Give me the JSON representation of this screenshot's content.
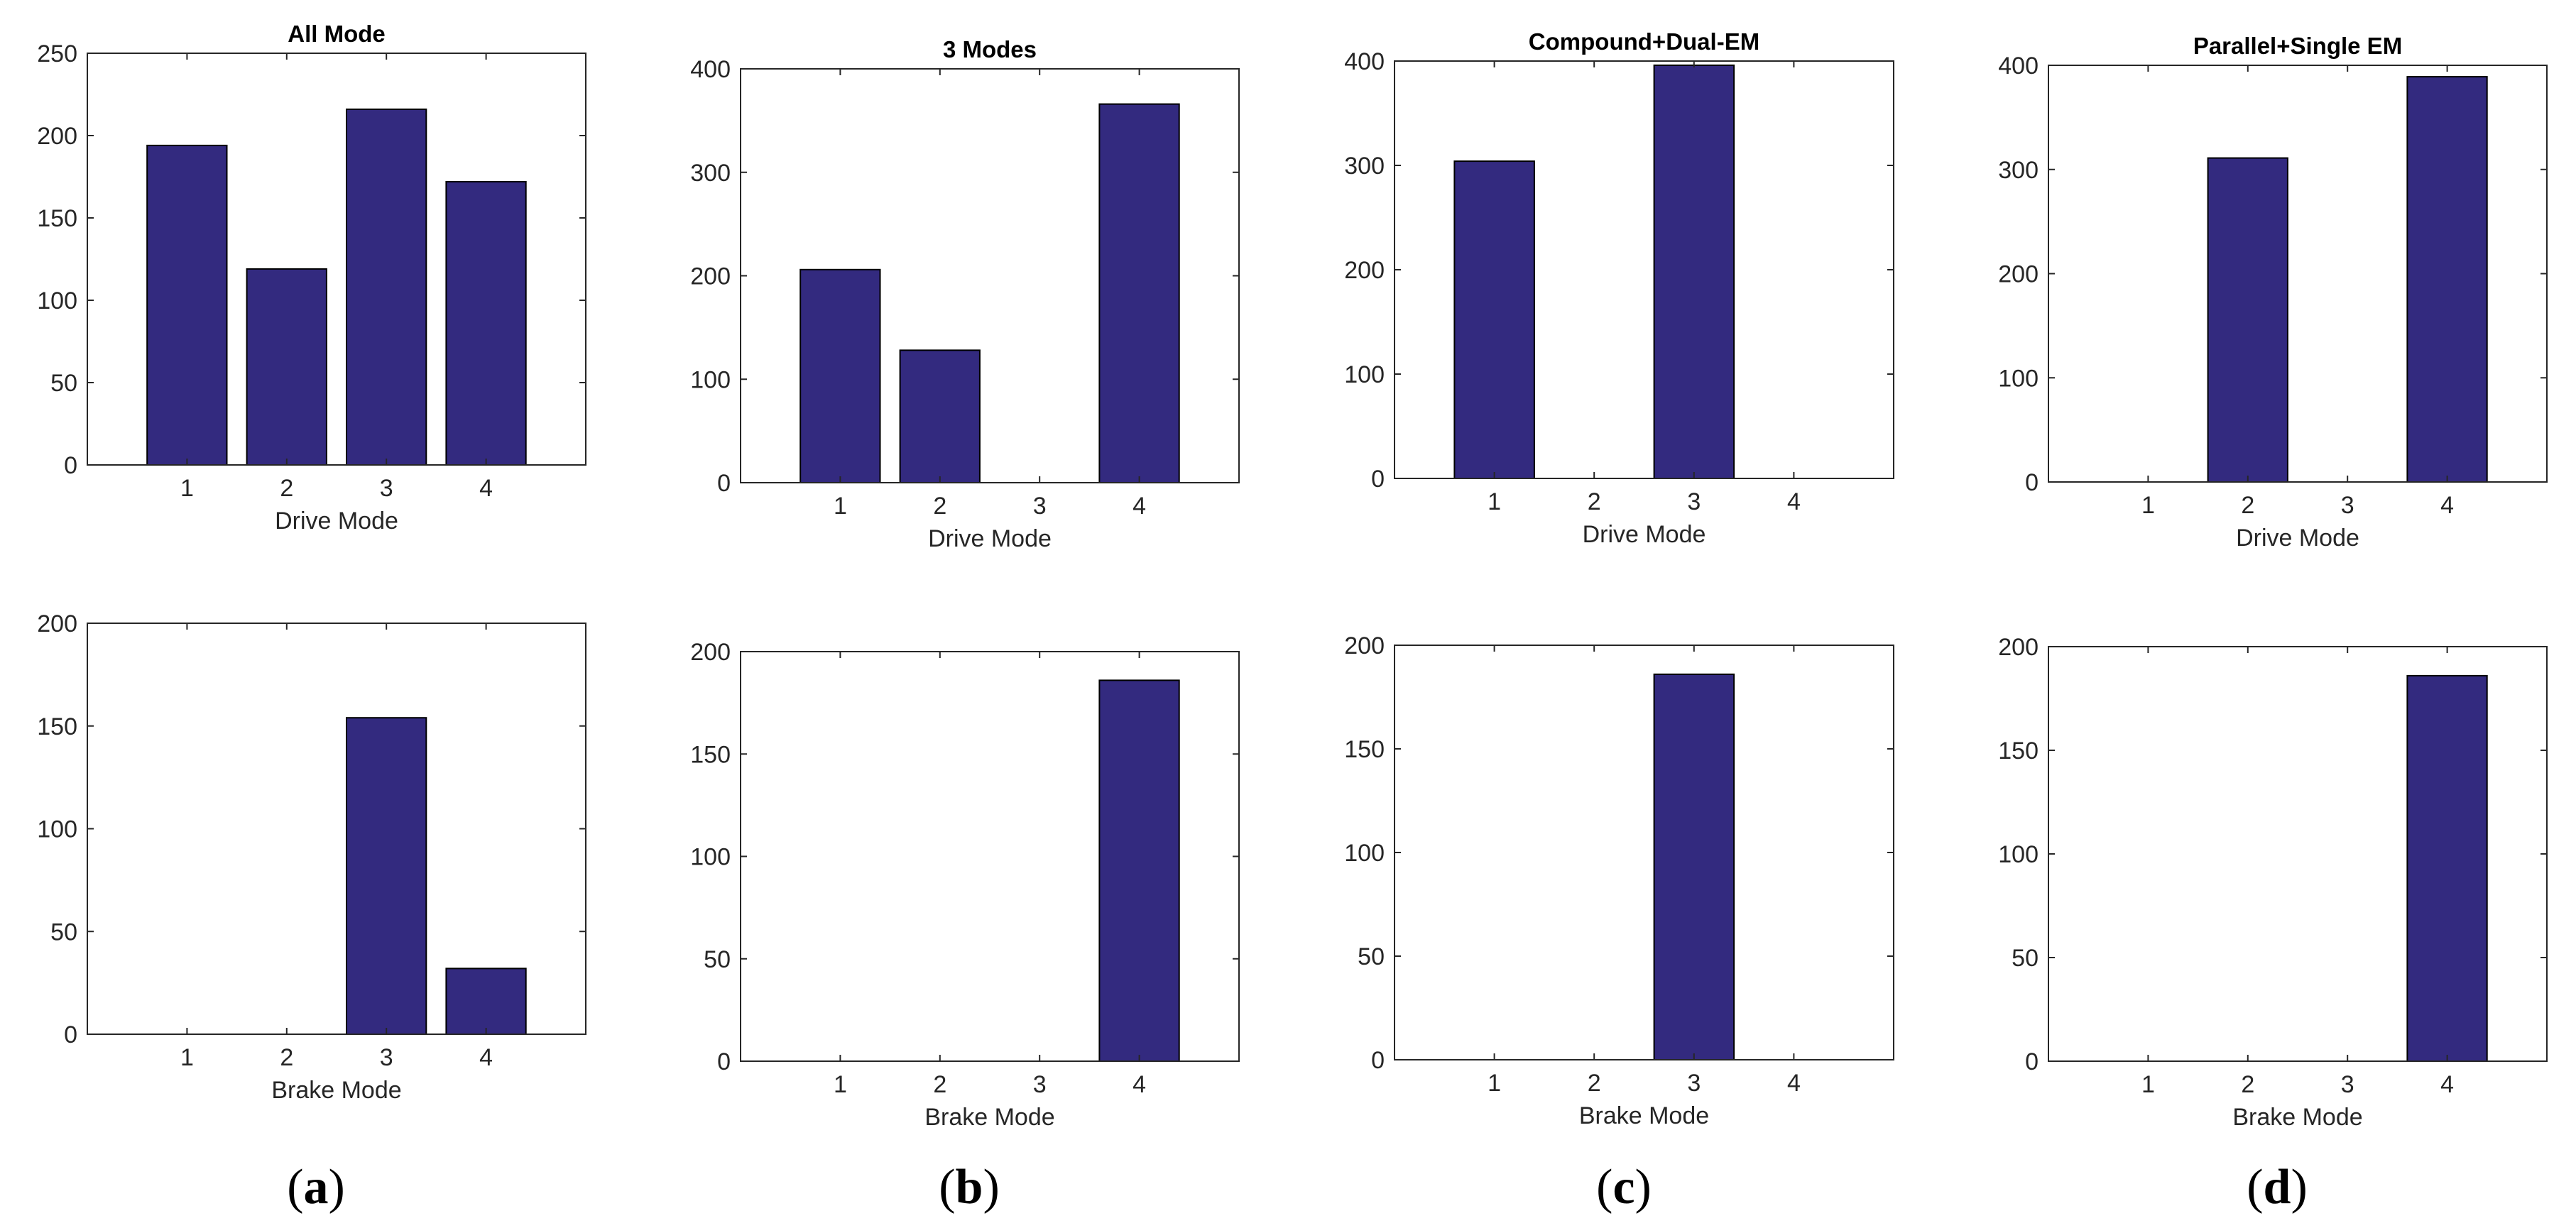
{
  "colors": {
    "bar": "#332a7f",
    "bar_edge": "#000000",
    "axis": "#262626",
    "background": "#ffffff"
  },
  "panel_labels": [
    {
      "open": "(",
      "letter": "a",
      "close": ")"
    },
    {
      "open": "(",
      "letter": "b",
      "close": ")"
    },
    {
      "open": "(",
      "letter": "c",
      "close": ")"
    },
    {
      "open": "(",
      "letter": "d",
      "close": ")"
    }
  ],
  "chart_data": [
    {
      "type": "bar",
      "title": "All Mode",
      "xlabel": "Drive Mode",
      "ylabel": "",
      "categories": [
        "1",
        "2",
        "3",
        "4"
      ],
      "values": [
        194,
        119,
        216,
        172
      ],
      "ylim": [
        0,
        250
      ],
      "yticks": [
        0,
        50,
        100,
        150,
        200,
        250
      ],
      "grid": false
    },
    {
      "type": "bar",
      "title": "",
      "xlabel": "Brake Mode",
      "ylabel": "",
      "categories": [
        "1",
        "2",
        "3",
        "4"
      ],
      "values": [
        0,
        0,
        154,
        32
      ],
      "ylim": [
        0,
        200
      ],
      "yticks": [
        0,
        50,
        100,
        150,
        200
      ],
      "grid": false
    },
    {
      "type": "bar",
      "title": "3 Modes",
      "xlabel": "Drive Mode",
      "ylabel": "",
      "categories": [
        "1",
        "2",
        "3",
        "4"
      ],
      "values": [
        206,
        128,
        0,
        366
      ],
      "ylim": [
        0,
        400
      ],
      "yticks": [
        0,
        100,
        200,
        300,
        400
      ],
      "grid": false
    },
    {
      "type": "bar",
      "title": "",
      "xlabel": "Brake Mode",
      "ylabel": "",
      "categories": [
        "1",
        "2",
        "3",
        "4"
      ],
      "values": [
        0,
        0,
        0,
        186
      ],
      "ylim": [
        0,
        200
      ],
      "yticks": [
        0,
        50,
        100,
        150,
        200
      ],
      "grid": false
    },
    {
      "type": "bar",
      "title": "Compound+Dual-EM",
      "xlabel": "Drive Mode",
      "ylabel": "",
      "categories": [
        "1",
        "2",
        "3",
        "4"
      ],
      "values": [
        304,
        0,
        396,
        0
      ],
      "ylim": [
        0,
        400
      ],
      "yticks": [
        0,
        100,
        200,
        300,
        400
      ],
      "grid": false
    },
    {
      "type": "bar",
      "title": "",
      "xlabel": "Brake Mode",
      "ylabel": "",
      "categories": [
        "1",
        "2",
        "3",
        "4"
      ],
      "values": [
        0,
        0,
        186,
        0
      ],
      "ylim": [
        0,
        200
      ],
      "yticks": [
        0,
        50,
        100,
        150,
        200
      ],
      "grid": false
    },
    {
      "type": "bar",
      "title": "Parallel+Single EM",
      "xlabel": "Drive Mode",
      "ylabel": "",
      "categories": [
        "1",
        "2",
        "3",
        "4"
      ],
      "values": [
        0,
        311,
        0,
        389
      ],
      "ylim": [
        0,
        400
      ],
      "yticks": [
        0,
        100,
        200,
        300,
        400
      ],
      "grid": false
    },
    {
      "type": "bar",
      "title": "",
      "xlabel": "Brake Mode",
      "ylabel": "",
      "categories": [
        "1",
        "2",
        "3",
        "4"
      ],
      "values": [
        0,
        0,
        0,
        186
      ],
      "ylim": [
        0,
        200
      ],
      "yticks": [
        0,
        50,
        100,
        150,
        200
      ],
      "grid": false
    }
  ]
}
